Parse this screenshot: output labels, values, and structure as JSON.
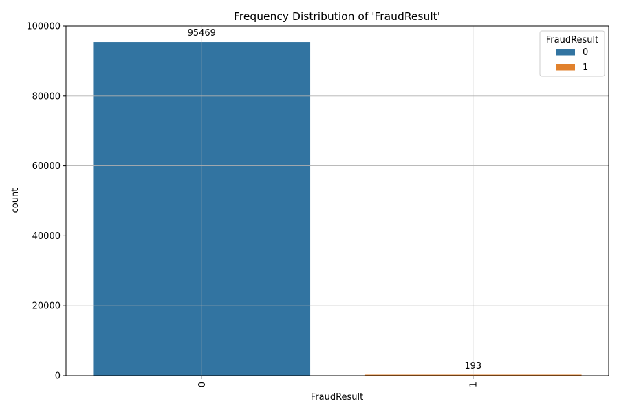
{
  "chart_data": {
    "type": "bar",
    "title": "Frequency Distribution of 'FraudResult'",
    "xlabel": "FraudResult",
    "ylabel": "count",
    "categories": [
      "0",
      "1"
    ],
    "values": [
      95469,
      193
    ],
    "data_labels": [
      "95469",
      "193"
    ],
    "colors": [
      "#3274a1",
      "#e1812c"
    ],
    "ylim": [
      0,
      100000
    ],
    "yticks": [
      0,
      20000,
      40000,
      60000,
      80000,
      100000
    ],
    "ytick_labels": [
      "0",
      "20000",
      "40000",
      "60000",
      "80000",
      "100000"
    ],
    "xtick_rotation": "vertical",
    "grid": true,
    "legend": {
      "title": "FraudResult",
      "placement": "top-right",
      "entries": [
        {
          "label": "0",
          "color": "#3274a1"
        },
        {
          "label": "1",
          "color": "#e1812c"
        }
      ]
    }
  }
}
